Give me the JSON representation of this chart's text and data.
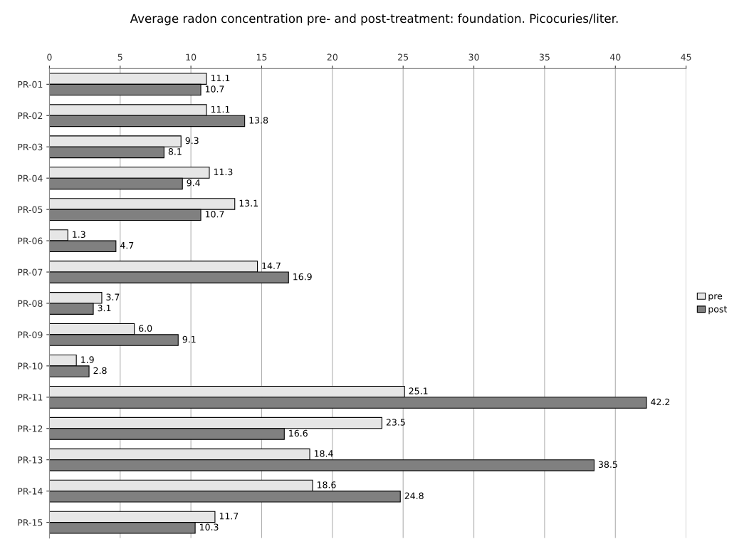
{
  "chart_data": {
    "type": "bar",
    "orientation": "horizontal",
    "title": "Average radon concentration pre- and post-treatment: foundation. Picocuries/liter.",
    "categories": [
      "PR-01",
      "PR-02",
      "PR-03",
      "PR-04",
      "PR-05",
      "PR-06",
      "PR-07",
      "PR-08",
      "PR-09",
      "PR-10",
      "PR-11",
      "PR-12",
      "PR-13",
      "PR-14",
      "PR-15"
    ],
    "series": [
      {
        "name": "pre",
        "color": "#e6e6e6",
        "values": [
          11.1,
          11.1,
          9.3,
          11.3,
          13.1,
          1.3,
          14.7,
          3.7,
          6.0,
          1.9,
          25.1,
          23.5,
          18.4,
          18.6,
          11.7
        ],
        "value_labels": [
          "11.1",
          "11.1",
          "9.3",
          "11.3",
          "13.1",
          "1.3",
          "14.7",
          "3.7",
          "6.0",
          "1.9",
          "25.1",
          "23.5",
          "18.4",
          "18.6",
          "11.7"
        ]
      },
      {
        "name": "post",
        "color": "#808080",
        "values": [
          10.7,
          13.8,
          8.1,
          9.4,
          10.7,
          4.7,
          16.9,
          3.1,
          9.1,
          2.8,
          42.2,
          16.6,
          38.5,
          24.8,
          10.3
        ],
        "value_labels": [
          "10.7",
          "13.8",
          "8.1",
          "9.4",
          "10.7",
          "4.7",
          "16.9",
          "3.1",
          "9.1",
          "2.8",
          "42.2",
          "16.6",
          "38.5",
          "24.8",
          "10.3"
        ]
      }
    ],
    "xlim": [
      0,
      45
    ],
    "xticks": [
      0,
      5,
      10,
      15,
      20,
      25,
      30,
      35,
      40,
      45
    ],
    "grid": "x",
    "legend": "right"
  }
}
